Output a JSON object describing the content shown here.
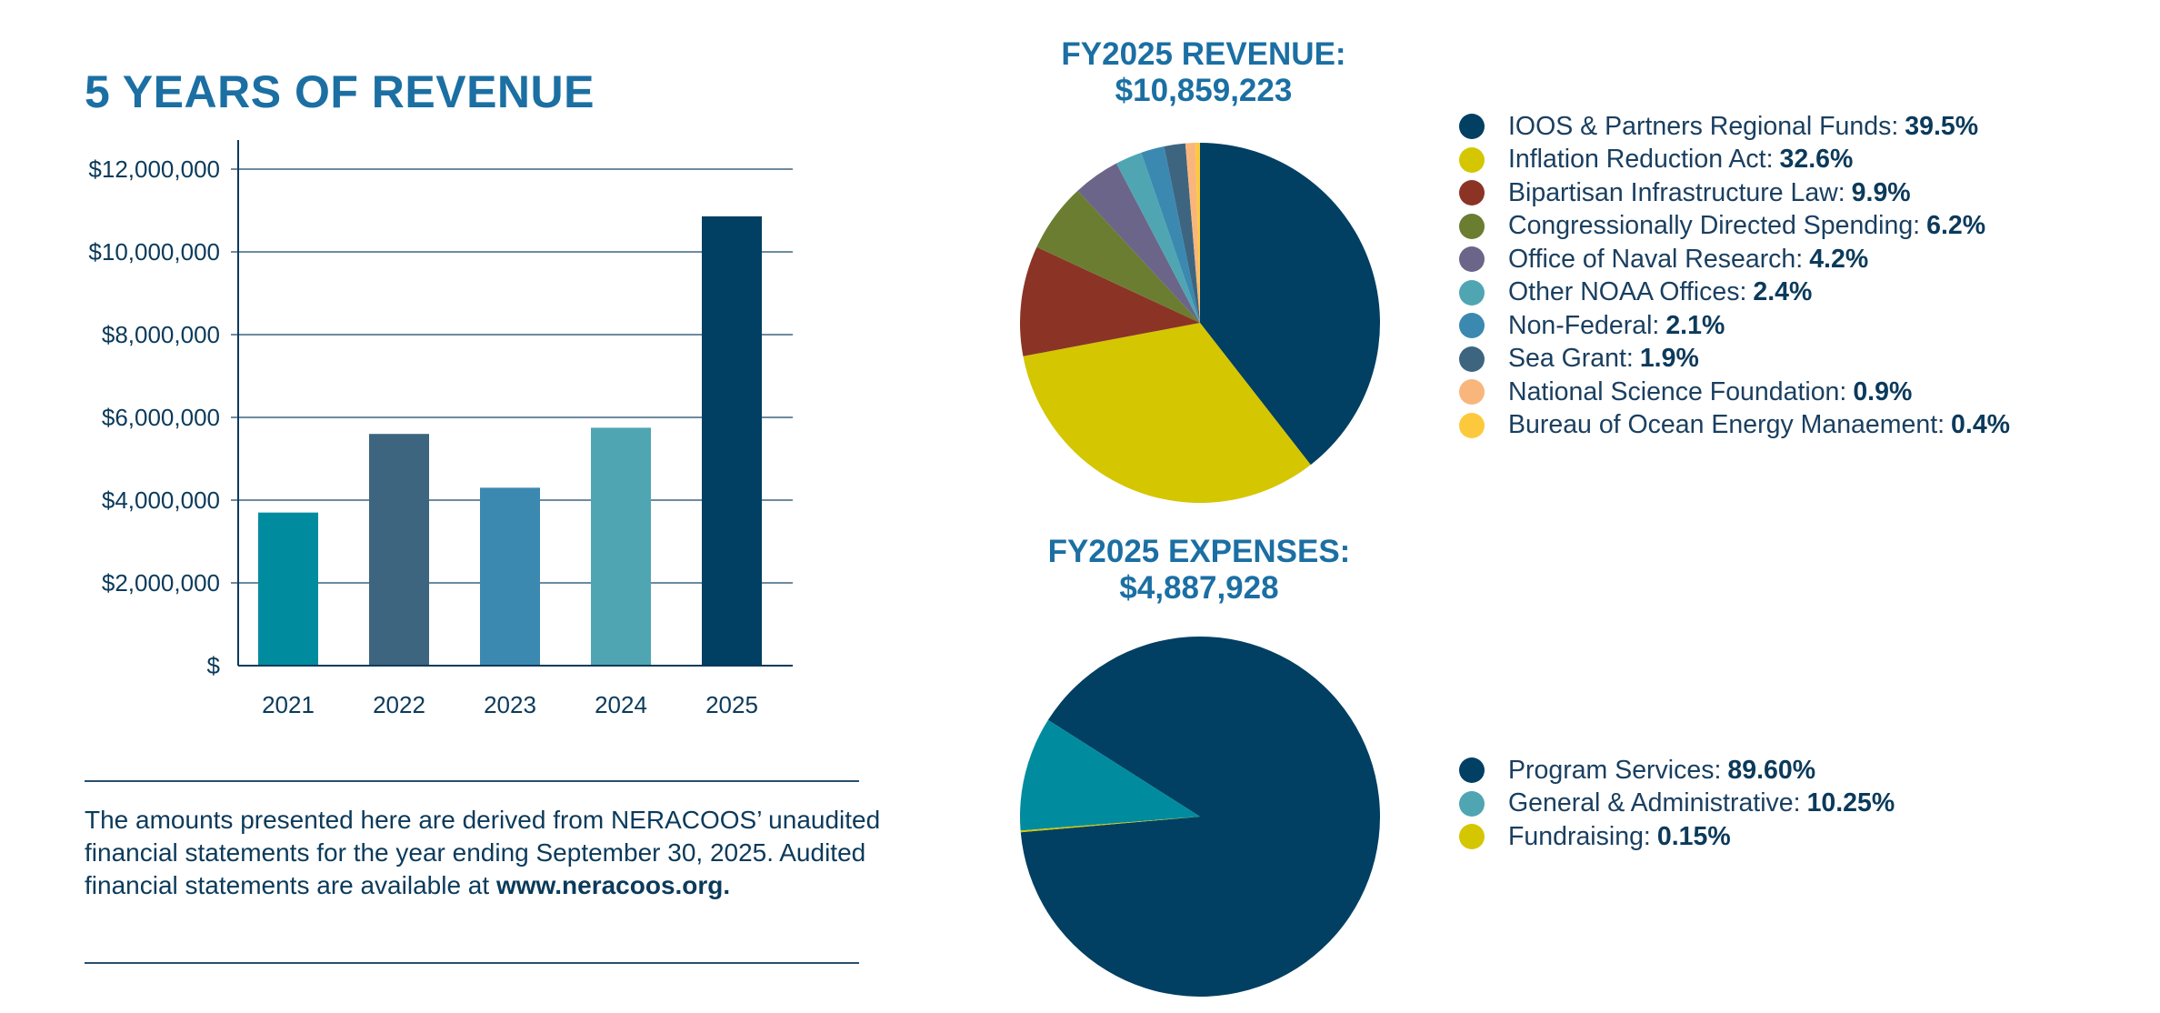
{
  "bar_section": {
    "title": "5 YEARS OF REVENUE"
  },
  "footnote": {
    "text": "The amounts presented here are derived from NERACOOS’ unaudited financial statements for the year ending September 30, 2025. Audited financial statements are available at",
    "link": "www.neracoos.org."
  },
  "revenue_pie": {
    "title": "FY2025 REVENUE:",
    "total": "$10,859,223"
  },
  "expenses_pie": {
    "title": "FY2025 EXPENSES:",
    "total": "$4,887,928"
  },
  "chart_data": [
    {
      "type": "bar",
      "title": "5 YEARS OF REVENUE",
      "categories": [
        "2021",
        "2022",
        "2023",
        "2024",
        "2025"
      ],
      "values": [
        3700000,
        5600000,
        4300000,
        5750000,
        10859223
      ],
      "colors": [
        "#008c9e",
        "#3d6580",
        "#3b89b0",
        "#4fa6b2",
        "#013f63"
      ],
      "ylim": [
        0,
        12000000
      ],
      "yticks": [
        0,
        2000000,
        4000000,
        6000000,
        8000000,
        10000000,
        12000000
      ],
      "ytick_labels": [
        "$",
        "$2,000,000",
        "$4,000,000",
        "$6,000,000",
        "$8,000,000",
        "$10,000,000",
        "$12,000,000"
      ],
      "grid": true
    },
    {
      "type": "pie",
      "title": "FY2025 REVENUE:",
      "subtitle": "$10,859,223",
      "slices": [
        {
          "label": "IOOS & Partners Regional Funds:",
          "pct_label": "39.5%",
          "value": 39.5,
          "color": "#013f63"
        },
        {
          "label": "Inflation Reduction Act:",
          "pct_label": "32.6%",
          "value": 32.6,
          "color": "#d4c600"
        },
        {
          "label": "Bipartisan Infrastructure Law:",
          "pct_label": "9.9%",
          "value": 9.9,
          "color": "#8b3426"
        },
        {
          "label": "Congressionally Directed Spending:",
          "pct_label": "6.2%",
          "value": 6.2,
          "color": "#6b7d31"
        },
        {
          "label": "Office of Naval Research:",
          "pct_label": "4.2%",
          "value": 4.2,
          "color": "#6b6589"
        },
        {
          "label": "Other NOAA Offices:",
          "pct_label": "2.4%",
          "value": 2.4,
          "color": "#4fa6b2"
        },
        {
          "label": "Non-Federal:",
          "pct_label": "2.1%",
          "value": 2.1,
          "color": "#3b89b0"
        },
        {
          "label": "Sea Grant:",
          "pct_label": "1.9%",
          "value": 1.9,
          "color": "#3d6580"
        },
        {
          "label": "National Science Foundation:",
          "pct_label": "0.9%",
          "value": 0.9,
          "color": "#f9b67c"
        },
        {
          "label": "Bureau of Ocean Energy Manaement:",
          "pct_label": "0.4%",
          "value": 0.4,
          "color": "#fdc93c"
        }
      ],
      "legend": "right"
    },
    {
      "type": "pie",
      "title": "FY2025 EXPENSES:",
      "subtitle": "$4,887,928",
      "slices": [
        {
          "label": "Program Services:",
          "pct_label": "89.60%",
          "value": 89.6,
          "color": "#013f63"
        },
        {
          "label": "General & Administrative:",
          "pct_label": "10.25%",
          "value": 10.25,
          "color": "#008c9e",
          "legend_color": "#4fa6b2"
        },
        {
          "label": "Fundraising:",
          "pct_label": "0.15%",
          "value": 0.15,
          "color": "#d4c600"
        }
      ],
      "legend": "right"
    }
  ]
}
